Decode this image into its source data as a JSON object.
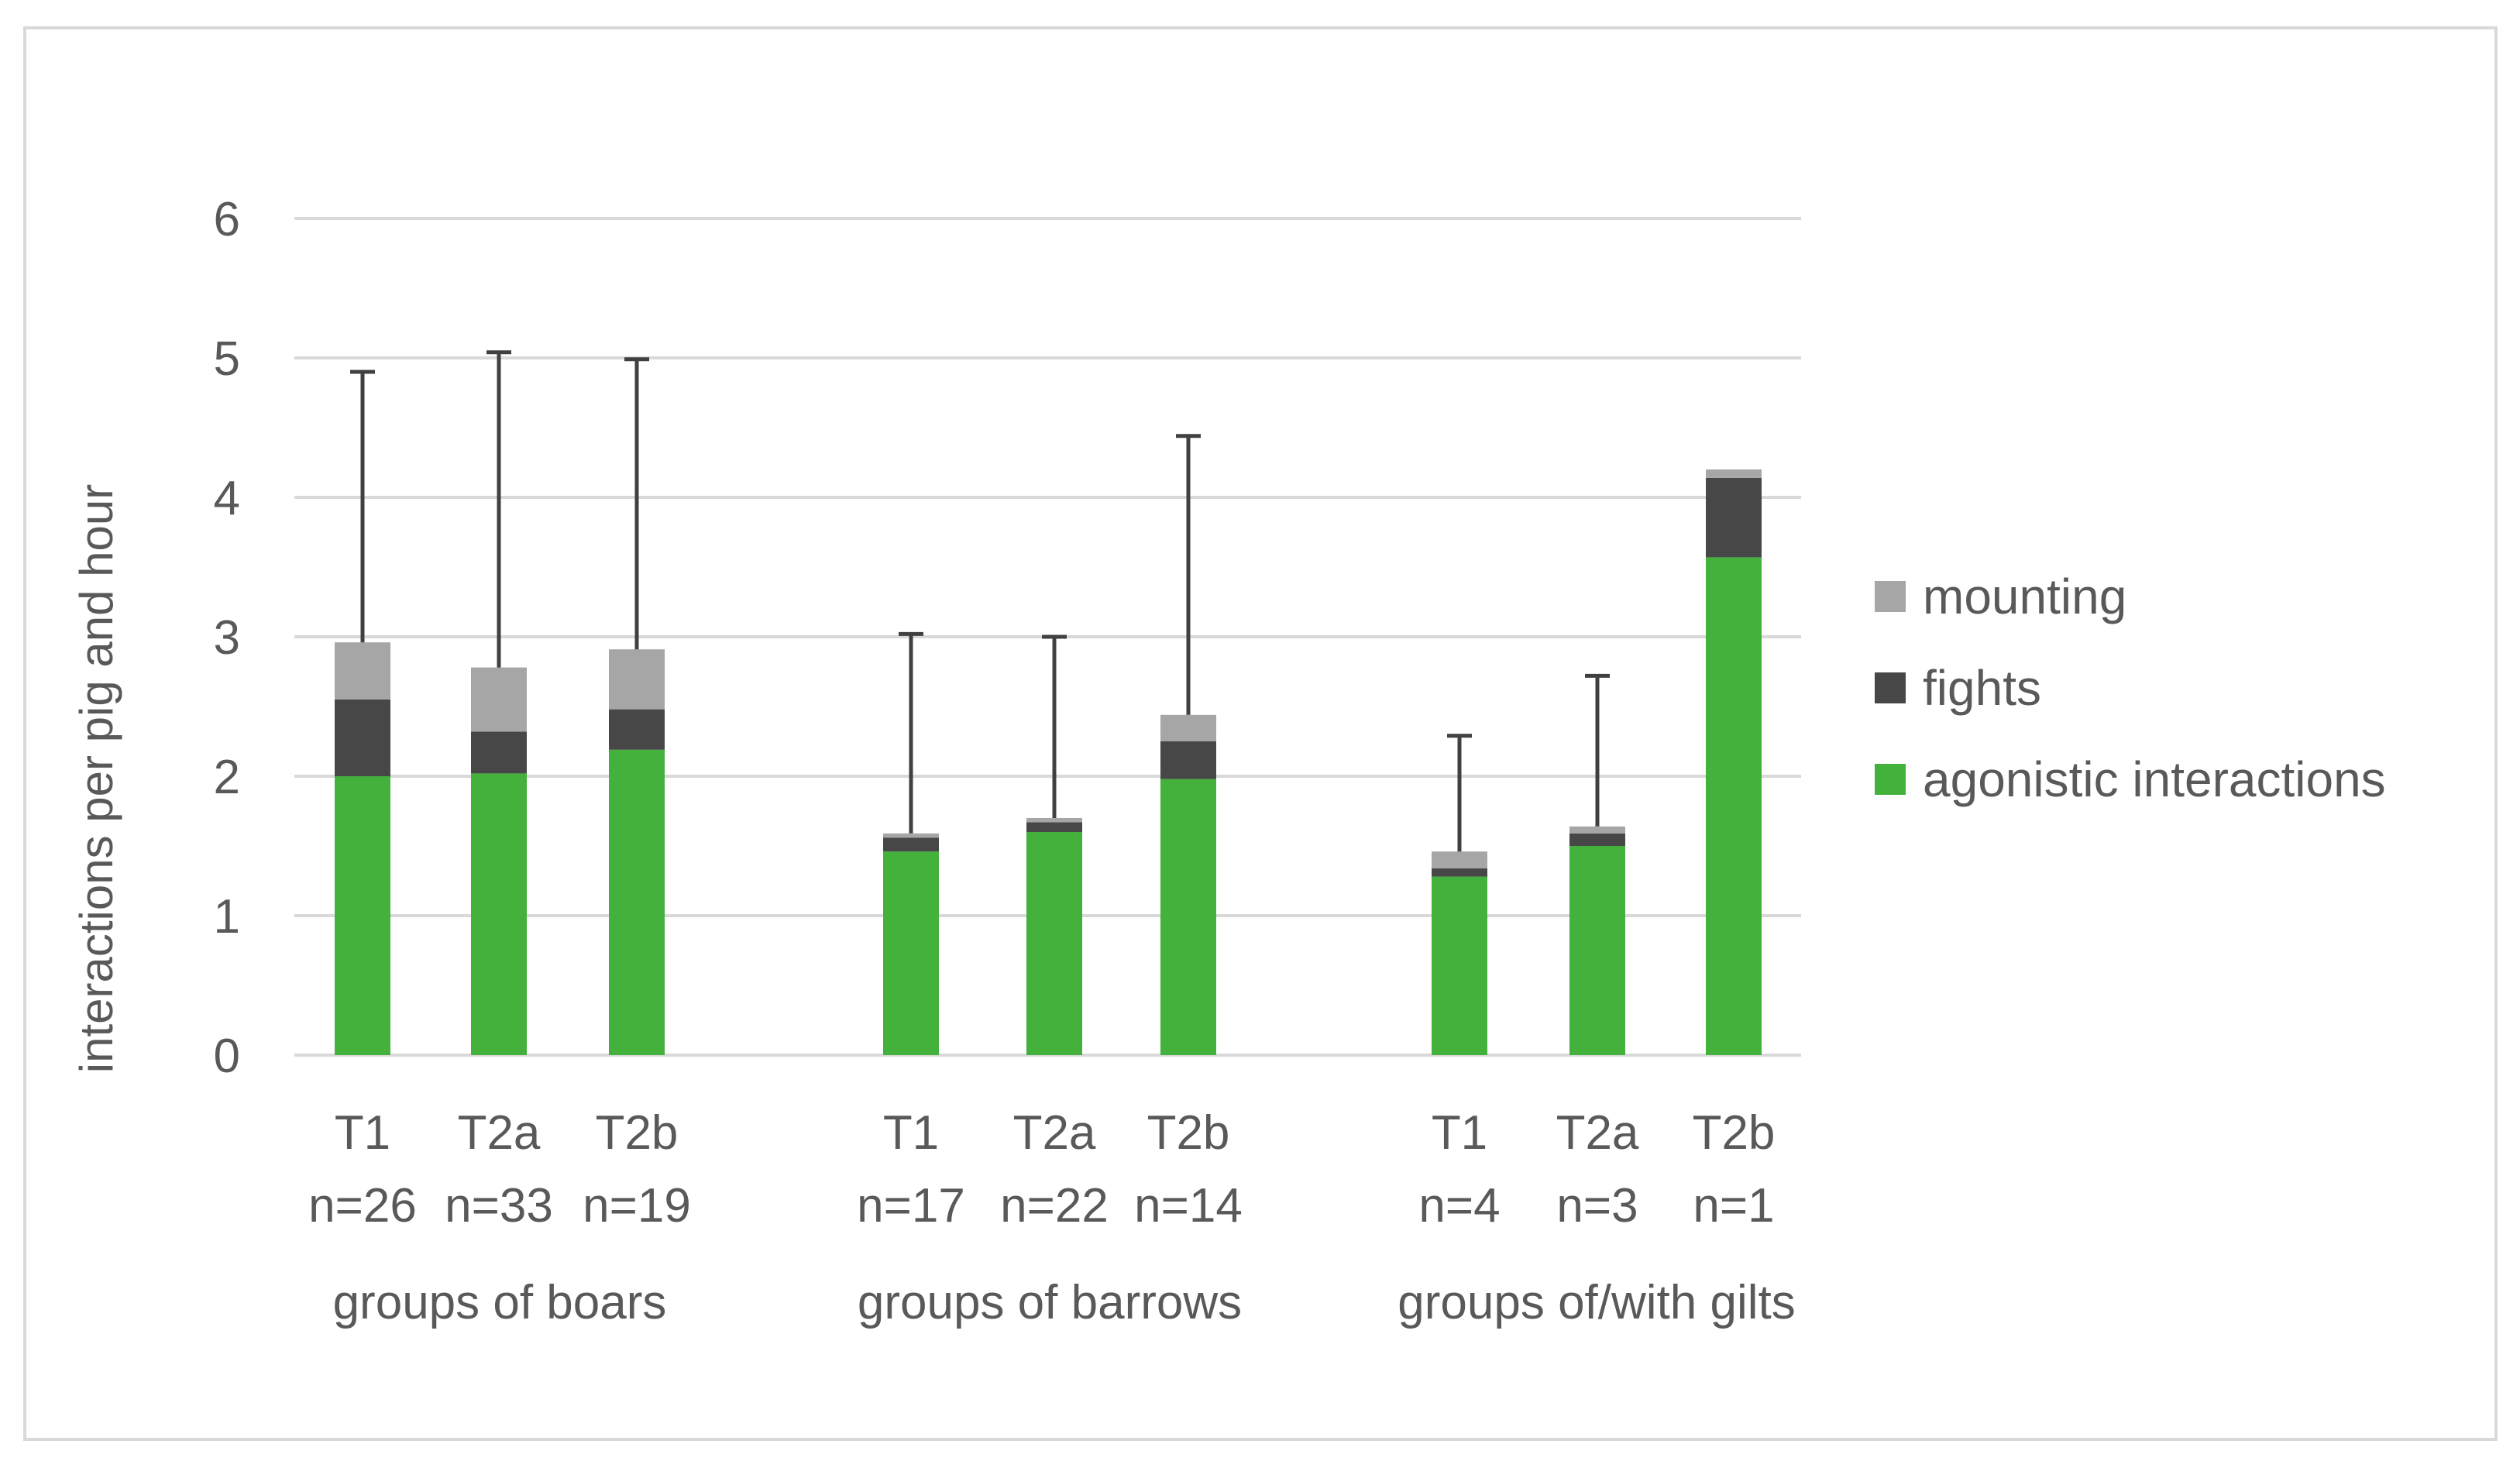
{
  "chart_data": {
    "type": "bar",
    "stacked": true,
    "title": "",
    "xlabel": "",
    "ylabel": "interactions per pig and hour",
    "ylim": [
      0,
      6
    ],
    "yticks": [
      "0",
      "1",
      "2",
      "3",
      "4",
      "5",
      "6"
    ],
    "grid": true,
    "legend_position": "right",
    "colors": {
      "agonistic interactions": "#43b13c",
      "fights": "#474747",
      "mounting": "#a6a6a6",
      "grid": "#d9d9d9",
      "text": "#595959",
      "error_bar": "#404040",
      "border": "#d9d9d9"
    },
    "groups": [
      {
        "label": "groups of boars",
        "categories": [
          {
            "name": "T1",
            "n": "n=26"
          },
          {
            "name": "T2a",
            "n": "n=33"
          },
          {
            "name": "T2b",
            "n": "n=19"
          }
        ]
      },
      {
        "label": "groups of barrows",
        "categories": [
          {
            "name": "T1",
            "n": "n=17"
          },
          {
            "name": "T2a",
            "n": "n=22"
          },
          {
            "name": "T2b",
            "n": "n=14"
          }
        ]
      },
      {
        "label": "groups of/with gilts",
        "categories": [
          {
            "name": "T1",
            "n": "n=4"
          },
          {
            "name": "T2a",
            "n": "n=3"
          },
          {
            "name": "T2b",
            "n": "n=1"
          }
        ]
      }
    ],
    "series": [
      {
        "name": "agonistic interactions",
        "values": [
          2.0,
          2.02,
          2.19,
          1.46,
          1.6,
          1.98,
          1.28,
          1.5,
          3.57
        ]
      },
      {
        "name": "fights",
        "values": [
          0.55,
          0.3,
          0.29,
          0.1,
          0.07,
          0.27,
          0.06,
          0.09,
          0.57
        ]
      },
      {
        "name": "mounting",
        "values": [
          0.41,
          0.46,
          0.43,
          0.03,
          0.03,
          0.19,
          0.12,
          0.05,
          0.06
        ]
      }
    ],
    "error_bar_upper": [
      4.9,
      5.04,
      4.99,
      3.02,
      3.0,
      4.44,
      2.29,
      2.72,
      null
    ],
    "legend": [
      "mounting",
      "fights",
      "agonistic interactions"
    ]
  }
}
